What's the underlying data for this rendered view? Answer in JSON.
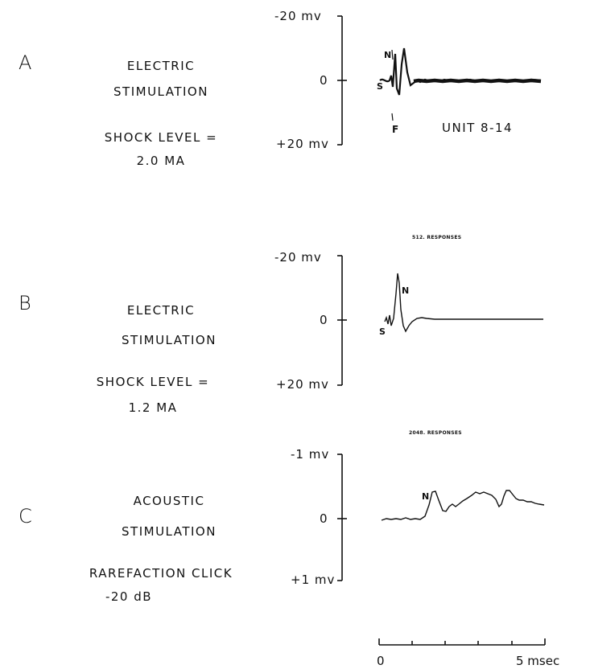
{
  "panels": [
    {
      "letter": "A",
      "title_line1": "ELECTRIC",
      "title_line2": "STIMULATION",
      "param_line1": "SHOCK LEVEL =",
      "param_line2": "2.0 MA",
      "axis_top": "-20 mv",
      "axis_mid": "0",
      "axis_bottom": "+20 mv",
      "unit_label": "UNIT 8-14",
      "marker_f": "F",
      "marker_n": "N",
      "marker_s": "S"
    },
    {
      "letter": "B",
      "title_line1": "ELECTRIC",
      "title_line2": "STIMULATION",
      "param_line1": "SHOCK LEVEL =",
      "param_line2": "1.2 MA",
      "axis_top": "-20 mv",
      "axis_mid": "0",
      "axis_bottom": "+20 mv",
      "responses": "512. RESPONSES",
      "marker_n": "N",
      "marker_s": "S"
    },
    {
      "letter": "C",
      "title_line1": "ACOUSTIC",
      "title_line2": "STIMULATION",
      "param_line1": "RAREFACTION CLICK",
      "param_line2": "-20 dB",
      "axis_top": "-1 mv",
      "axis_mid": "0",
      "axis_bottom": "+1 mv",
      "responses": "2048. RESPONSES",
      "marker_n": "N"
    }
  ],
  "time_axis": {
    "start_label": "0",
    "end_label": "5 msec",
    "range_ms": [
      0,
      5
    ],
    "tick_count": 6
  }
}
